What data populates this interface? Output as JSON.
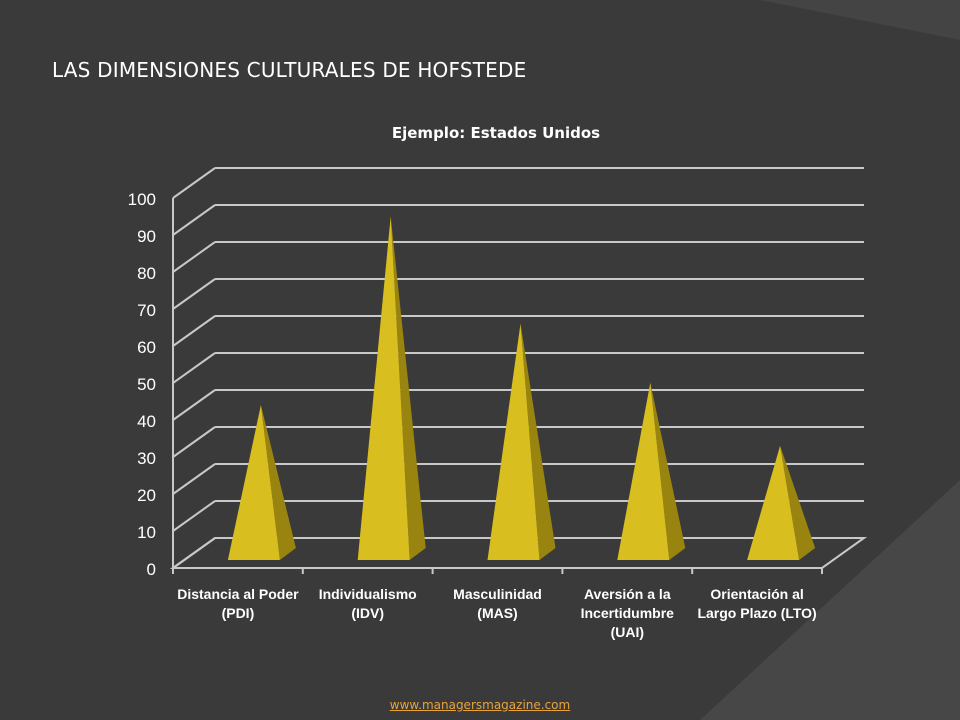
{
  "slide": {
    "title": "LAS DIMENSIONES CULTURALES DE HOFSTEDE",
    "footer_link": "www.managersmagazine.com",
    "accent_color": "#e8a33a",
    "background_color": "#3a3a3a"
  },
  "chart_data": {
    "type": "bar",
    "bar_shape": "3d-pyramid",
    "title": "Ejemplo: Estados Unidos",
    "xlabel": "",
    "ylabel": "",
    "ylim": [
      0,
      100
    ],
    "yticks": [
      0,
      10,
      20,
      30,
      40,
      50,
      60,
      70,
      80,
      90,
      100
    ],
    "grid": true,
    "legend": "none",
    "categories": [
      [
        "Distancia al Poder",
        "(PDI)"
      ],
      [
        "Individualismo",
        "(IDV)"
      ],
      [
        "Masculinidad",
        "(MAS)"
      ],
      [
        "Aversión a la",
        "Incertidumbre",
        "(UAI)"
      ],
      [
        "Orientación al",
        "Largo Plazo (LTO)"
      ]
    ],
    "values": [
      40,
      91,
      62,
      46,
      29
    ],
    "colors": {
      "face": "#d8be1e",
      "side": "#9a8410",
      "grid": "#c8c8c8",
      "text": "#ffffff"
    }
  }
}
